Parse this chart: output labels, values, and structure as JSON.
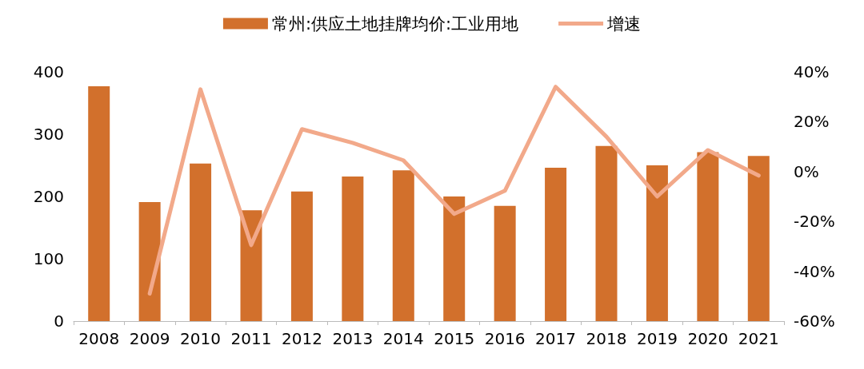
{
  "chart_data": {
    "type": "bar",
    "categories": [
      "2008",
      "2009",
      "2010",
      "2011",
      "2012",
      "2013",
      "2014",
      "2015",
      "2016",
      "2017",
      "2018",
      "2019",
      "2020",
      "2021"
    ],
    "series": [
      {
        "name": "常州:供应土地挂牌均价:工业用地",
        "color": "#d2702c",
        "values": [
          377,
          191,
          253,
          178,
          208,
          232,
          242,
          200,
          185,
          246,
          281,
          250,
          271,
          265
        ]
      },
      {
        "name": "增速",
        "type": "line",
        "axis": "y2",
        "color": "#f2a98a",
        "values": [
          null,
          -49,
          33,
          -29.5,
          17,
          11.5,
          4.5,
          -17,
          -7.7,
          34,
          14,
          -10,
          8.6,
          -1.6
        ]
      }
    ],
    "ylim": [
      0,
      400
    ],
    "yticks": [
      0,
      100,
      200,
      300,
      400
    ],
    "y2lim": [
      -60,
      40
    ],
    "y2ticks": [
      {
        "value": -60,
        "label": "-60%"
      },
      {
        "value": -40,
        "label": "-40%"
      },
      {
        "value": -20,
        "label": "-20%"
      },
      {
        "value": 0,
        "label": "0%"
      },
      {
        "value": 20,
        "label": "20%"
      },
      {
        "value": 40,
        "label": "40%"
      }
    ],
    "grid": false,
    "legend": "top",
    "marker": "none",
    "line_style": "solid"
  }
}
